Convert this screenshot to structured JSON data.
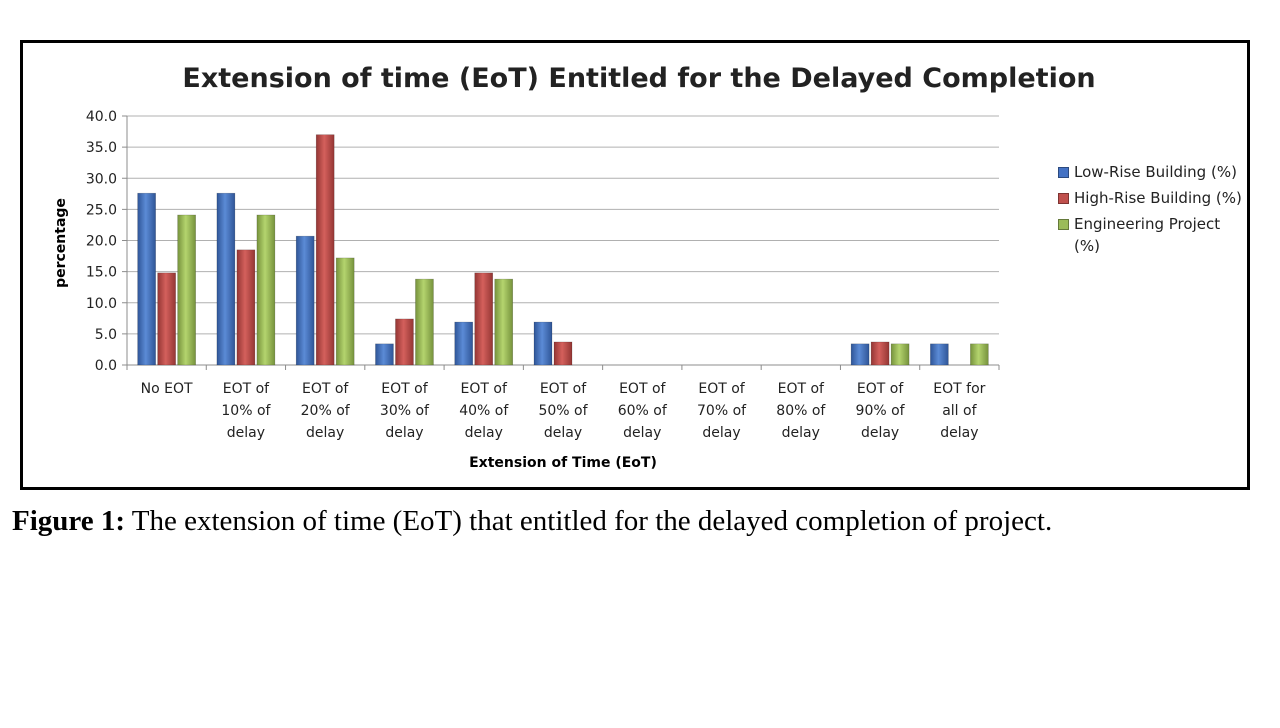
{
  "caption": {
    "label": "Figure 1:",
    "text": " The extension of time (EoT) that entitled for the delayed completion of project."
  },
  "chart_data": {
    "type": "bar",
    "title": "Extension of time (EoT) Entitled for the Delayed Completion",
    "xlabel": "Extension of Time (EoT)",
    "ylabel": "percentage",
    "ylim": [
      0,
      40
    ],
    "yticks": [
      "0.0",
      "5.0",
      "10.0",
      "15.0",
      "20.0",
      "25.0",
      "30.0",
      "35.0",
      "40.0"
    ],
    "grid": true,
    "legend_position": "right",
    "categories": [
      [
        "No EOT"
      ],
      [
        "EOT of",
        "10% of",
        "delay"
      ],
      [
        "EOT of",
        "20% of",
        "delay"
      ],
      [
        "EOT of",
        "30% of",
        "delay"
      ],
      [
        "EOT of",
        "40% of",
        "delay"
      ],
      [
        "EOT of",
        "50% of",
        "delay"
      ],
      [
        "EOT of",
        "60% of",
        "delay"
      ],
      [
        "EOT of",
        "70% of",
        "delay"
      ],
      [
        "EOT of",
        "80% of",
        "delay"
      ],
      [
        "EOT of",
        "90% of",
        "delay"
      ],
      [
        "EOT for",
        "all of",
        "delay"
      ]
    ],
    "series": [
      {
        "name": "Low-Rise Building (%)",
        "color": "#4472C4",
        "values": [
          27.6,
          27.6,
          20.7,
          3.4,
          6.9,
          6.9,
          0,
          0,
          0,
          3.4,
          3.4
        ]
      },
      {
        "name": "High-Rise Building (%)",
        "color": "#C0504D",
        "values": [
          14.8,
          18.5,
          37.0,
          7.4,
          14.8,
          3.7,
          0,
          0,
          0,
          3.7,
          0
        ]
      },
      {
        "name": "Engineering Project (%)",
        "color": "#9BBB59",
        "values": [
          24.1,
          24.1,
          17.2,
          13.8,
          13.8,
          0,
          0,
          0,
          0,
          3.4,
          3.4
        ]
      }
    ]
  }
}
